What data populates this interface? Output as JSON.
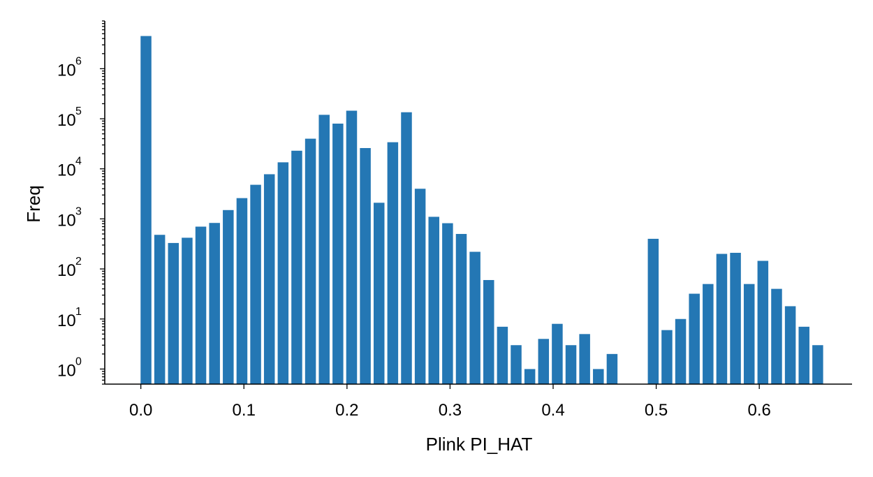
{
  "chart_data": {
    "type": "bar",
    "xlabel": "Plink PI_HAT",
    "ylabel": "Freq",
    "yscale": "log",
    "xlim": [
      -0.035,
      0.69
    ],
    "ylim": [
      0.5,
      9000000
    ],
    "grid": false,
    "color": "#2477b4",
    "bar_width": 0.0105,
    "x_ticks": [
      {
        "value": 0.0,
        "label": "0.0"
      },
      {
        "value": 0.1,
        "label": "0.1"
      },
      {
        "value": 0.2,
        "label": "0.2"
      },
      {
        "value": 0.3,
        "label": "0.3"
      },
      {
        "value": 0.4,
        "label": "0.4"
      },
      {
        "value": 0.5,
        "label": "0.5"
      },
      {
        "value": 0.6,
        "label": "0.6"
      }
    ],
    "y_ticks": [
      {
        "value": 1,
        "base": "10",
        "exp": "0"
      },
      {
        "value": 10,
        "base": "10",
        "exp": "1"
      },
      {
        "value": 100,
        "base": "10",
        "exp": "2"
      },
      {
        "value": 1000,
        "base": "10",
        "exp": "3"
      },
      {
        "value": 10000,
        "base": "10",
        "exp": "4"
      },
      {
        "value": 100000,
        "base": "10",
        "exp": "5"
      },
      {
        "value": 1000000,
        "base": "10",
        "exp": "6"
      }
    ],
    "x": [
      0.005,
      0.0183,
      0.0316,
      0.0449,
      0.0582,
      0.0715,
      0.0848,
      0.0981,
      0.1114,
      0.1247,
      0.138,
      0.1513,
      0.1646,
      0.1779,
      0.1912,
      0.2045,
      0.2178,
      0.2311,
      0.2444,
      0.2577,
      0.271,
      0.2843,
      0.2976,
      0.3109,
      0.3242,
      0.3375,
      0.3508,
      0.3641,
      0.3774,
      0.3907,
      0.404,
      0.4173,
      0.4306,
      0.4439,
      0.4572,
      0.4971,
      0.5104,
      0.5237,
      0.537,
      0.5503,
      0.5636,
      0.5769,
      0.5902,
      0.6035,
      0.6168,
      0.6301,
      0.6434,
      0.6567
    ],
    "values": [
      4500000,
      480,
      330,
      420,
      700,
      830,
      1500,
      2600,
      4800,
      7800,
      13500,
      23000,
      40000,
      120000,
      80000,
      145000,
      26000,
      2100,
      34000,
      135000,
      4000,
      1100,
      820,
      500,
      220,
      60,
      7,
      3,
      1,
      4,
      8,
      3,
      5,
      1,
      2,
      400,
      6,
      10,
      32,
      50,
      200,
      210,
      50,
      145,
      40,
      18,
      7,
      3
    ]
  }
}
